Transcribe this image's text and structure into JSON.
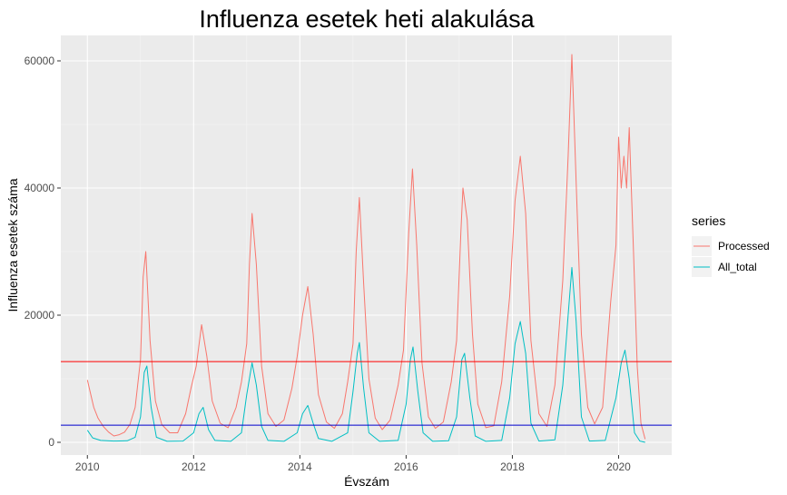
{
  "chart_data": {
    "type": "line",
    "title": "Influenza esetek heti alakulása",
    "xlabel": "Évszám",
    "ylabel": "Influenza esetek száma",
    "xlim": [
      2009.5,
      2021.0
    ],
    "ylim": [
      -2000,
      64000
    ],
    "x_ticks": [
      2010,
      2012,
      2014,
      2016,
      2018,
      2020
    ],
    "x_tick_labels": [
      "2010",
      "2012",
      "2014",
      "2016",
      "2018",
      "2020"
    ],
    "y_ticks": [
      0,
      20000,
      40000,
      60000
    ],
    "y_tick_labels": [
      "0",
      "20000",
      "40000",
      "60000"
    ],
    "grid": true,
    "legend": {
      "title": "series",
      "position": "right"
    },
    "series": [
      {
        "name": "Processed",
        "color": "#F8766D",
        "points": [
          [
            2010.0,
            9800
          ],
          [
            2010.05,
            8000
          ],
          [
            2010.12,
            5500
          ],
          [
            2010.2,
            3800
          ],
          [
            2010.3,
            2500
          ],
          [
            2010.4,
            1600
          ],
          [
            2010.5,
            1000
          ],
          [
            2010.6,
            1200
          ],
          [
            2010.7,
            1600
          ],
          [
            2010.8,
            2800
          ],
          [
            2010.9,
            5500
          ],
          [
            2011.0,
            13000
          ],
          [
            2011.05,
            26000
          ],
          [
            2011.1,
            30000
          ],
          [
            2011.18,
            16000
          ],
          [
            2011.28,
            6500
          ],
          [
            2011.4,
            2800
          ],
          [
            2011.55,
            1500
          ],
          [
            2011.7,
            1500
          ],
          [
            2011.85,
            4500
          ],
          [
            2011.95,
            8500
          ],
          [
            2012.05,
            12000
          ],
          [
            2012.15,
            18500
          ],
          [
            2012.25,
            13500
          ],
          [
            2012.35,
            6500
          ],
          [
            2012.5,
            3000
          ],
          [
            2012.65,
            2300
          ],
          [
            2012.8,
            5500
          ],
          [
            2012.9,
            9500
          ],
          [
            2013.0,
            15500
          ],
          [
            2013.05,
            28000
          ],
          [
            2013.1,
            36000
          ],
          [
            2013.18,
            28000
          ],
          [
            2013.28,
            12000
          ],
          [
            2013.4,
            4500
          ],
          [
            2013.55,
            2500
          ],
          [
            2013.7,
            3500
          ],
          [
            2013.85,
            8500
          ],
          [
            2013.95,
            13500
          ],
          [
            2014.05,
            20000
          ],
          [
            2014.15,
            24500
          ],
          [
            2014.25,
            17000
          ],
          [
            2014.35,
            7500
          ],
          [
            2014.5,
            3200
          ],
          [
            2014.65,
            2200
          ],
          [
            2014.8,
            4500
          ],
          [
            2014.9,
            9500
          ],
          [
            2015.0,
            15500
          ],
          [
            2015.06,
            30000
          ],
          [
            2015.12,
            38500
          ],
          [
            2015.2,
            25000
          ],
          [
            2015.3,
            10000
          ],
          [
            2015.42,
            3800
          ],
          [
            2015.55,
            2000
          ],
          [
            2015.7,
            3500
          ],
          [
            2015.85,
            9000
          ],
          [
            2015.95,
            14500
          ],
          [
            2016.05,
            33000
          ],
          [
            2016.12,
            43000
          ],
          [
            2016.2,
            31000
          ],
          [
            2016.3,
            12500
          ],
          [
            2016.42,
            4000
          ],
          [
            2016.55,
            2200
          ],
          [
            2016.7,
            3200
          ],
          [
            2016.85,
            9500
          ],
          [
            2016.95,
            16000
          ],
          [
            2017.03,
            33000
          ],
          [
            2017.07,
            40000
          ],
          [
            2017.15,
            35000
          ],
          [
            2017.25,
            17000
          ],
          [
            2017.35,
            6000
          ],
          [
            2017.5,
            2300
          ],
          [
            2017.65,
            2600
          ],
          [
            2017.8,
            9500
          ],
          [
            2017.95,
            23000
          ],
          [
            2018.05,
            38000
          ],
          [
            2018.15,
            45000
          ],
          [
            2018.25,
            36000
          ],
          [
            2018.35,
            16000
          ],
          [
            2018.5,
            4500
          ],
          [
            2018.65,
            2500
          ],
          [
            2018.8,
            9000
          ],
          [
            2018.95,
            25500
          ],
          [
            2019.05,
            45000
          ],
          [
            2019.12,
            61000
          ],
          [
            2019.2,
            41000
          ],
          [
            2019.3,
            17000
          ],
          [
            2019.42,
            5500
          ],
          [
            2019.55,
            2900
          ],
          [
            2019.7,
            5500
          ],
          [
            2019.85,
            22000
          ],
          [
            2019.95,
            31000
          ],
          [
            2020.0,
            48000
          ],
          [
            2020.05,
            40000
          ],
          [
            2020.1,
            45000
          ],
          [
            2020.15,
            40000
          ],
          [
            2020.2,
            49500
          ],
          [
            2020.28,
            30000
          ],
          [
            2020.35,
            12000
          ],
          [
            2020.42,
            3000
          ],
          [
            2020.5,
            500
          ]
        ]
      },
      {
        "name": "All_total",
        "color": "#00BFC4",
        "points": [
          [
            2010.0,
            1900
          ],
          [
            2010.1,
            700
          ],
          [
            2010.25,
            300
          ],
          [
            2010.5,
            200
          ],
          [
            2010.75,
            250
          ],
          [
            2010.9,
            800
          ],
          [
            2011.0,
            4000
          ],
          [
            2011.07,
            11000
          ],
          [
            2011.12,
            12000
          ],
          [
            2011.2,
            5500
          ],
          [
            2011.3,
            800
          ],
          [
            2011.5,
            150
          ],
          [
            2011.8,
            200
          ],
          [
            2012.0,
            1500
          ],
          [
            2012.1,
            4500
          ],
          [
            2012.18,
            5500
          ],
          [
            2012.28,
            2000
          ],
          [
            2012.4,
            300
          ],
          [
            2012.7,
            150
          ],
          [
            2012.9,
            1500
          ],
          [
            2013.0,
            7500
          ],
          [
            2013.1,
            12500
          ],
          [
            2013.18,
            9000
          ],
          [
            2013.28,
            2500
          ],
          [
            2013.4,
            300
          ],
          [
            2013.7,
            150
          ],
          [
            2013.95,
            1500
          ],
          [
            2014.05,
            4500
          ],
          [
            2014.15,
            5800
          ],
          [
            2014.25,
            3000
          ],
          [
            2014.35,
            600
          ],
          [
            2014.6,
            150
          ],
          [
            2014.9,
            1500
          ],
          [
            2015.0,
            8000
          ],
          [
            2015.08,
            14000
          ],
          [
            2015.12,
            15700
          ],
          [
            2015.2,
            8500
          ],
          [
            2015.3,
            1500
          ],
          [
            2015.5,
            150
          ],
          [
            2015.85,
            300
          ],
          [
            2016.0,
            6000
          ],
          [
            2016.08,
            13000
          ],
          [
            2016.13,
            15000
          ],
          [
            2016.22,
            8000
          ],
          [
            2016.32,
            1500
          ],
          [
            2016.5,
            150
          ],
          [
            2016.8,
            250
          ],
          [
            2016.95,
            4000
          ],
          [
            2017.05,
            13000
          ],
          [
            2017.1,
            14000
          ],
          [
            2017.2,
            7000
          ],
          [
            2017.3,
            1000
          ],
          [
            2017.5,
            150
          ],
          [
            2017.8,
            300
          ],
          [
            2017.95,
            7000
          ],
          [
            2018.05,
            15500
          ],
          [
            2018.15,
            19000
          ],
          [
            2018.25,
            14000
          ],
          [
            2018.35,
            3000
          ],
          [
            2018.5,
            200
          ],
          [
            2018.8,
            400
          ],
          [
            2018.95,
            9000
          ],
          [
            2019.05,
            20000
          ],
          [
            2019.12,
            27500
          ],
          [
            2019.2,
            19000
          ],
          [
            2019.3,
            4000
          ],
          [
            2019.45,
            200
          ],
          [
            2019.75,
            300
          ],
          [
            2019.95,
            7000
          ],
          [
            2020.05,
            12500
          ],
          [
            2020.12,
            14500
          ],
          [
            2020.2,
            10000
          ],
          [
            2020.3,
            1500
          ],
          [
            2020.4,
            200
          ],
          [
            2020.5,
            0
          ]
        ]
      }
    ],
    "hlines": [
      {
        "y": 12700,
        "color": "#FF0000"
      },
      {
        "y": 2700,
        "color": "#0000CD"
      }
    ]
  }
}
